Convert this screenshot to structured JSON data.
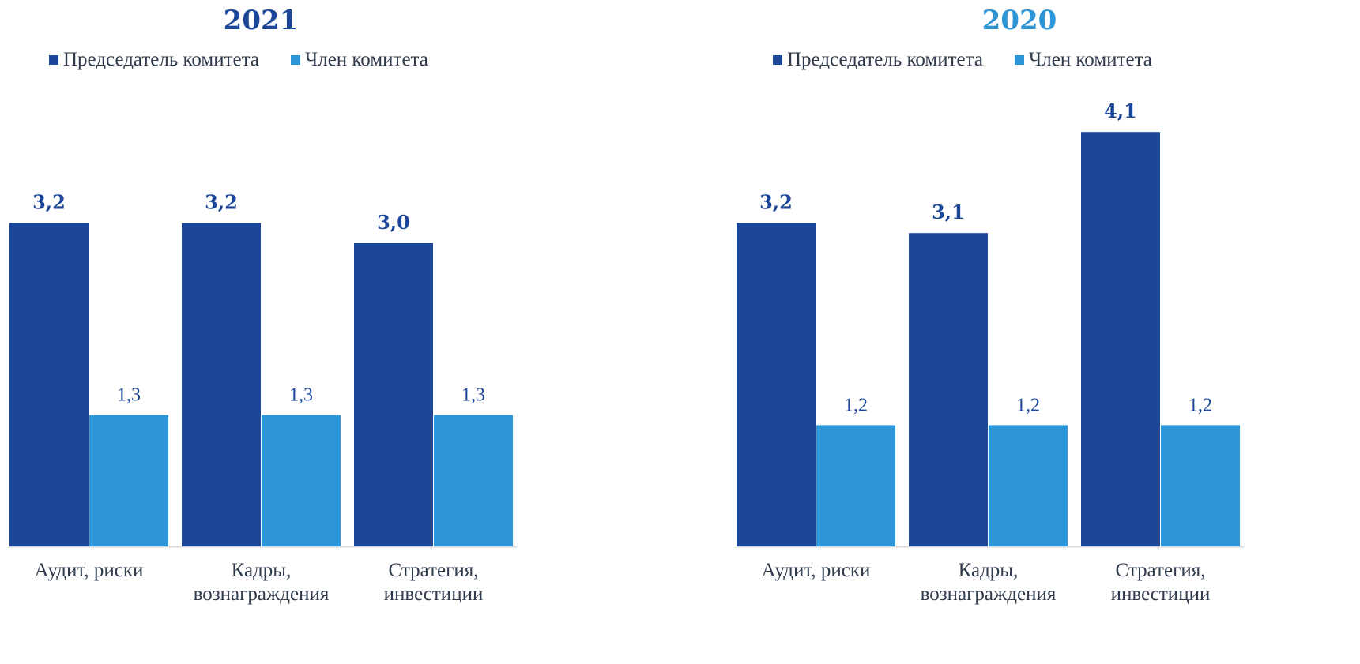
{
  "colors": {
    "chair": "#1c4798",
    "member": "#2e95d6",
    "title_2021": "#1c4798",
    "title_2020": "#2e95d6",
    "label_chair": "#1c4798",
    "label_member": "#1c4798",
    "axis_text": "#2f3b4c",
    "axis_line": "#d9d9d9"
  },
  "chart_data": [
    {
      "type": "bar",
      "title": "2021",
      "categories": [
        [
          "Аудит, риски"
        ],
        [
          "Кадры,",
          "вознаграждения"
        ],
        [
          "Стратегия,",
          "инвестиции"
        ]
      ],
      "series": [
        {
          "name": "Председатель комитета",
          "values": [
            3.2,
            3.2,
            3.0
          ],
          "labels": [
            "3,2",
            "3,2",
            "3,0"
          ]
        },
        {
          "name": "Член комитета",
          "values": [
            1.3,
            1.3,
            1.3
          ],
          "labels": [
            "1,3",
            "1,3",
            "1,3"
          ]
        }
      ],
      "ylim": [
        0,
        4.3
      ],
      "grid": false,
      "legend": "top"
    },
    {
      "type": "bar",
      "title": "2020",
      "categories": [
        [
          "Аудит, риски"
        ],
        [
          "Кадры,",
          "вознаграждения"
        ],
        [
          "Стратегия,",
          "инвестиции"
        ]
      ],
      "series": [
        {
          "name": "Председатель комитета",
          "values": [
            3.2,
            3.1,
            4.1
          ],
          "labels": [
            "3,2",
            "3,1",
            "4,1"
          ]
        },
        {
          "name": "Член комитета",
          "values": [
            1.2,
            1.2,
            1.2
          ],
          "labels": [
            "1,2",
            "1,2",
            "1,2"
          ]
        }
      ],
      "ylim": [
        0,
        4.3
      ],
      "grid": false,
      "legend": "top"
    }
  ]
}
